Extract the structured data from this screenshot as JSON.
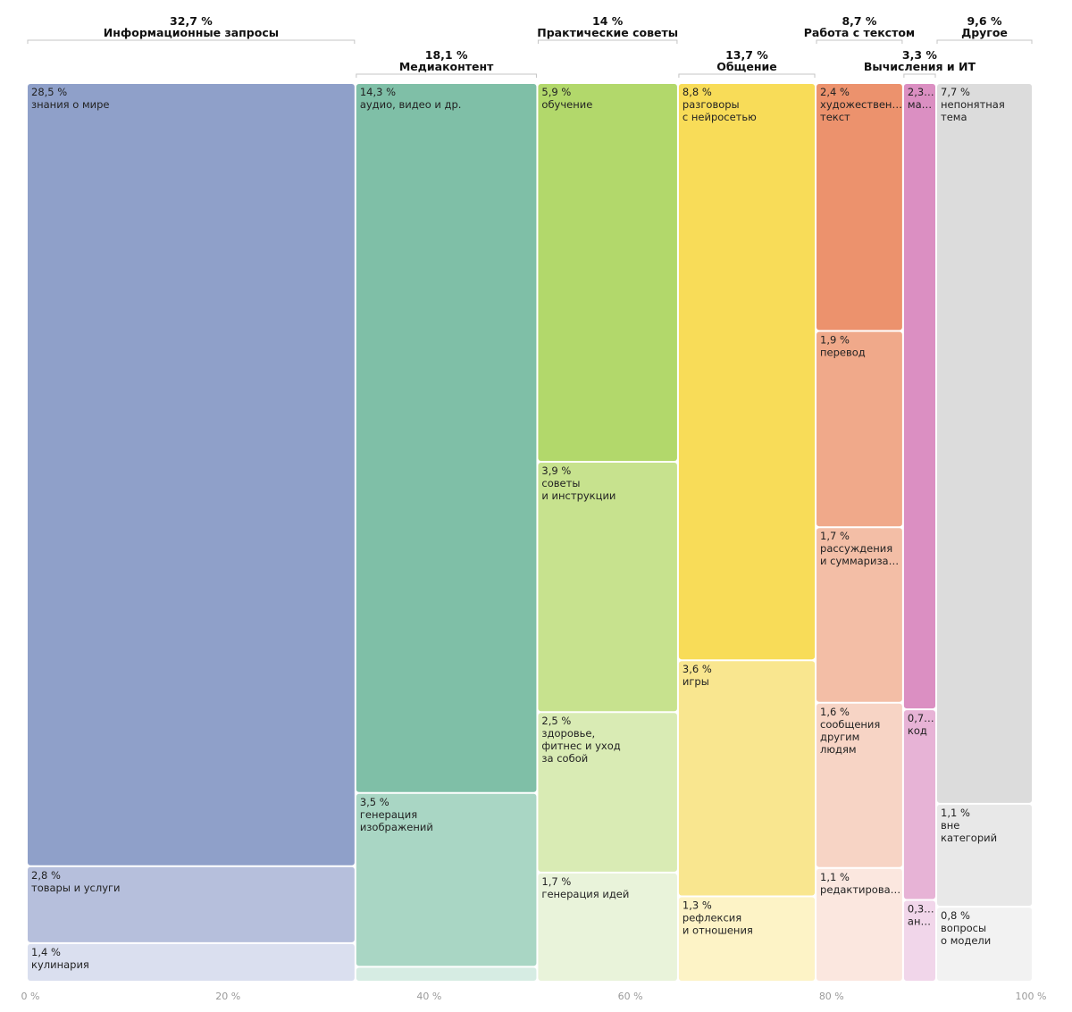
{
  "chart_data": {
    "type": "marimekko",
    "x_unit": "%",
    "xlim": [
      0,
      100
    ],
    "x_ticks": [
      {
        "value": 0,
        "label": "0 %"
      },
      {
        "value": 20,
        "label": "20 %"
      },
      {
        "value": 40,
        "label": "40 %"
      },
      {
        "value": 60,
        "label": "60 %"
      },
      {
        "value": 80,
        "label": "80 %"
      },
      {
        "value": 100,
        "label": "100 %"
      }
    ],
    "groups": [
      {
        "name": "Информационные запросы",
        "share": 32.7,
        "share_label": "32,7 %",
        "color": "#8fa0c9",
        "header_row": 1,
        "segments": [
          {
            "value": 28.5,
            "value_label": "28,5 %",
            "label": [
              "знания о мире"
            ],
            "color": "#8fa0c9"
          },
          {
            "value": 2.8,
            "value_label": "2,8 %",
            "label": [
              "товары и услуги"
            ],
            "color": "#b6bfdc"
          },
          {
            "value": 1.4,
            "value_label": "1,4 %",
            "label": [
              "кулинария"
            ],
            "color": "#dadfef"
          }
        ]
      },
      {
        "name": "Медиаконтент",
        "share": 18.1,
        "share_label": "18,1 %",
        "color": "#7fbfa7",
        "header_row": 2,
        "segments": [
          {
            "value": 14.3,
            "value_label": "14,3 %",
            "label": [
              "аудио, видео и др."
            ],
            "color": "#7fbfa7"
          },
          {
            "value": 3.5,
            "value_label": "3,5 %",
            "label": [
              "генерация",
              "изображений"
            ],
            "color": "#a9d6c4"
          },
          {
            "value": 0.3,
            "value_label": "",
            "label": [],
            "color": "#d6ece3"
          }
        ]
      },
      {
        "name": "Практические советы",
        "share": 14,
        "share_label": "14 %",
        "color": "#b2d86b",
        "header_row": 1,
        "segments": [
          {
            "value": 5.9,
            "value_label": "5,9 %",
            "label": [
              "обучение"
            ],
            "color": "#b2d86b"
          },
          {
            "value": 3.9,
            "value_label": "3,9 %",
            "label": [
              "советы",
              "и инструкции"
            ],
            "color": "#c7e28e"
          },
          {
            "value": 2.5,
            "value_label": "2,5 %",
            "label": [
              "здоровье,",
              "фитнес и уход",
              "за собой"
            ],
            "color": "#d9ebb4"
          },
          {
            "value": 1.7,
            "value_label": "1,7 %",
            "label": [
              "генерация идей"
            ],
            "color": "#e9f3da"
          }
        ]
      },
      {
        "name": "Общение",
        "share": 13.7,
        "share_label": "13,7 %",
        "color": "#f8dc58",
        "header_row": 2,
        "segments": [
          {
            "value": 8.8,
            "value_label": "8,8 %",
            "label": [
              "разговоры",
              "с нейросетью"
            ],
            "color": "#f8dc58"
          },
          {
            "value": 3.6,
            "value_label": "3,6 %",
            "label": [
              "игры"
            ],
            "color": "#f9e68f"
          },
          {
            "value": 1.3,
            "value_label": "1,3 %",
            "label": [
              "рефлексия",
              "и отношения"
            ],
            "color": "#fdf3c6"
          }
        ]
      },
      {
        "name": "Работа с текстом",
        "share": 8.7,
        "share_label": "8,7 %",
        "color": "#ec926d",
        "header_row": 1,
        "segments": [
          {
            "value": 2.4,
            "value_label": "2,4 %",
            "label": [
              "художествен…",
              "текст"
            ],
            "color": "#ec926d"
          },
          {
            "value": 1.9,
            "value_label": "1,9 %",
            "label": [
              "перевод"
            ],
            "color": "#f0a98a"
          },
          {
            "value": 1.7,
            "value_label": "1,7 %",
            "label": [
              "рассуждения",
              "и суммариза…"
            ],
            "color": "#f3bea6"
          },
          {
            "value": 1.6,
            "value_label": "1,6 %",
            "label": [
              "сообщения",
              "другим",
              "людям"
            ],
            "color": "#f7d4c5"
          },
          {
            "value": 1.1,
            "value_label": "1,1 %",
            "label": [
              "редактирова…"
            ],
            "color": "#fbe7df"
          }
        ]
      },
      {
        "name": "Вычисления и ИТ",
        "share": 3.3,
        "share_label": "3,3 %",
        "color": "#db8fc2",
        "header_row": 2,
        "segments": [
          {
            "value": 2.3,
            "value_label": "2,3…",
            "label": [
              "ма…"
            ],
            "color": "#db8fc2"
          },
          {
            "value": 0.7,
            "value_label": "0,7…",
            "label": [
              "код"
            ],
            "color": "#e7b3d6"
          },
          {
            "value": 0.3,
            "value_label": "0,3…",
            "label": [
              "ан…"
            ],
            "color": "#f1d6ea"
          }
        ]
      },
      {
        "name": "Другое",
        "share": 9.6,
        "share_label": "9,6 %",
        "color": "#dcdcdc",
        "header_row": 1,
        "segments": [
          {
            "value": 7.7,
            "value_label": "7,7 %",
            "label": [
              "непонятная",
              "тема"
            ],
            "color": "#dcdcdc"
          },
          {
            "value": 1.1,
            "value_label": "1,1 %",
            "label": [
              "вне",
              "категорий"
            ],
            "color": "#e8e8e8"
          },
          {
            "value": 0.8,
            "value_label": "0,8 %",
            "label": [
              "вопросы",
              "о модели"
            ],
            "color": "#f2f2f2"
          }
        ]
      }
    ]
  }
}
